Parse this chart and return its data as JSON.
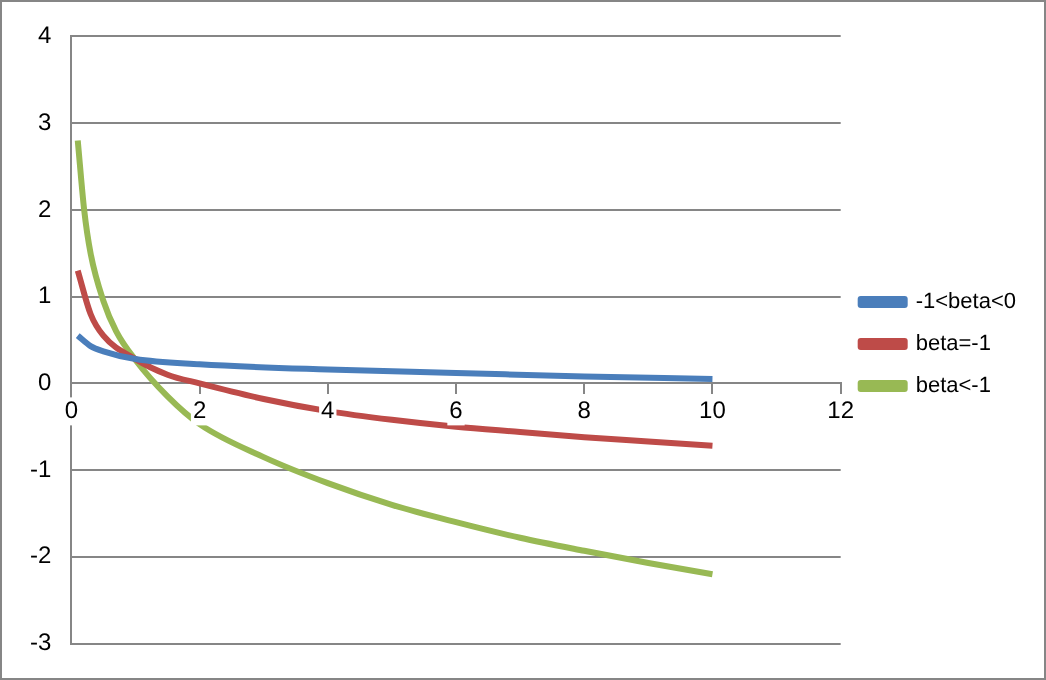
{
  "chart_data": {
    "type": "line",
    "xlim": [
      0,
      12
    ],
    "xticks": [
      0,
      2,
      4,
      6,
      8,
      10,
      12
    ],
    "ylim": [
      -3,
      4
    ],
    "yticks": [
      -3,
      -2,
      -1,
      0,
      1,
      2,
      3,
      4
    ],
    "grid": "y",
    "legend": "right",
    "series": [
      {
        "name": "-1<beta<0",
        "color": "#4a7ebb",
        "x": [
          0.1,
          0.3,
          0.5,
          1,
          2,
          4,
          6,
          8,
          10
        ],
        "values": [
          0.55,
          0.43,
          0.37,
          0.28,
          0.22,
          0.16,
          0.12,
          0.08,
          0.05
        ]
      },
      {
        "name": "beta=-1",
        "color": "#be4b48",
        "x": [
          0.1,
          0.3,
          0.5,
          1,
          1.5,
          2,
          3,
          4,
          5,
          6,
          7,
          8,
          9,
          10
        ],
        "values": [
          1.3,
          0.8,
          0.55,
          0.28,
          0.1,
          0,
          -0.18,
          -0.32,
          -0.42,
          -0.5,
          -0.56,
          -0.62,
          -0.67,
          -0.72
        ]
      },
      {
        "name": "beta<-1",
        "color": "#98b954",
        "x": [
          0.1,
          0.2,
          0.3,
          0.5,
          0.7,
          1,
          1.5,
          2,
          3,
          4,
          5,
          6,
          7,
          8,
          9,
          10
        ],
        "values": [
          2.8,
          2.0,
          1.5,
          0.95,
          0.6,
          0.27,
          -0.15,
          -0.47,
          -0.85,
          -1.15,
          -1.4,
          -1.6,
          -1.78,
          -1.93,
          -2.07,
          -2.2
        ]
      }
    ]
  }
}
